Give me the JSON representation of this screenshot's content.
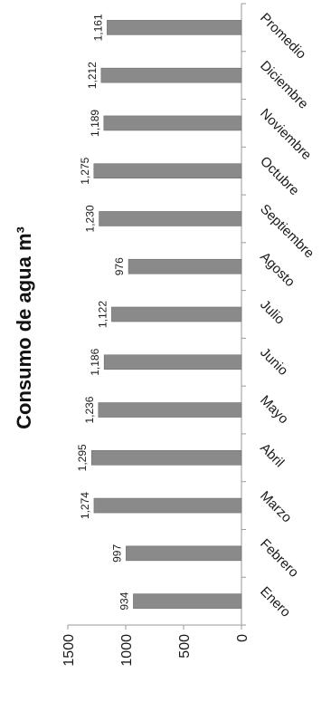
{
  "chart_data": {
    "type": "bar",
    "title": "Consumo de agua m³",
    "xlabel": "",
    "ylabel": "",
    "categories": [
      "Enero",
      "Febrero",
      "Marzo",
      "Abril",
      "Mayo",
      "Junio",
      "Julio",
      "Agosto",
      "Septiembre",
      "Octubre",
      "Noviembre",
      "Diciembre",
      "Promedio"
    ],
    "values": [
      934,
      997,
      1274,
      1295,
      1236,
      1186,
      1122,
      976,
      1230,
      1275,
      1189,
      1212,
      1161
    ],
    "data_labels": [
      "934",
      "997",
      "1,274",
      "1,295",
      "1,236",
      "1,186",
      "1,122",
      "976",
      "1,230",
      "1,275",
      "1,189",
      "1,212",
      "1,161"
    ],
    "yticks": [
      "0",
      "500",
      "1000",
      "1500"
    ],
    "ytick_values": [
      0,
      500,
      1000,
      1500
    ],
    "ylim": [
      0,
      1500
    ],
    "orientation": "rotated 90° clockwise",
    "grid": false,
    "legend": "none",
    "bar_color": "#8a8a8a"
  }
}
